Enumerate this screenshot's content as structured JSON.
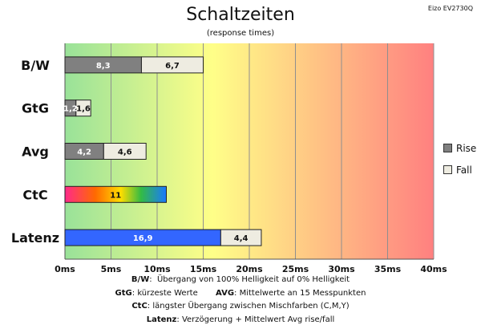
{
  "header": {
    "title": "Schaltzeiten",
    "subtitle": "(response times)",
    "model": "Eizo EV2730Q"
  },
  "colors": {
    "rise": "#808080",
    "fall": "#eeece1",
    "latency": "#3366ff",
    "bg_gradient": [
      "#99e299",
      "#ffff88",
      "#ff8080"
    ]
  },
  "chart_data": {
    "type": "bar",
    "orientation": "horizontal",
    "stacked": true,
    "categories": [
      "B/W",
      "GtG",
      "Avg",
      "CtC",
      "Latenz"
    ],
    "series": [
      {
        "name": "Rise",
        "values": [
          8.3,
          1.2,
          4.2,
          null,
          16.9
        ]
      },
      {
        "name": "Fall",
        "values": [
          6.7,
          1.6,
          4.6,
          null,
          4.4
        ]
      },
      {
        "name": "",
        "values": [
          null,
          null,
          null,
          11,
          null
        ]
      }
    ],
    "value_labels": [
      [
        "8,3",
        "6,7"
      ],
      [
        "1,2",
        "1,6"
      ],
      [
        "4,2",
        "4,6"
      ],
      [
        "11"
      ],
      [
        "16,9",
        "4,4"
      ]
    ],
    "xlim": [
      0,
      40
    ],
    "xticks": [
      0,
      5,
      10,
      15,
      20,
      25,
      30,
      35,
      40
    ],
    "xtick_labels": [
      "0ms",
      "5ms",
      "10ms",
      "15ms",
      "20ms",
      "25ms",
      "30ms",
      "35ms",
      "40ms"
    ],
    "legend": [
      {
        "label": "Rise",
        "color": "#808080"
      },
      {
        "label": "Fall",
        "color": "#eeece1"
      }
    ],
    "legend_position": "right",
    "grid": true
  },
  "notes": [
    {
      "key": "B/W",
      "text": "Übergang von 100% Helligkeit auf 0% Helligkeit"
    },
    {
      "key": "GtG",
      "text": "kürzeste Werte"
    },
    {
      "key": "AVG",
      "text": "Mittelwerte an 15 Messpunkten"
    },
    {
      "key": "CtC",
      "text": "längster Übergang zwischen Mischfarben (C,M,Y)"
    },
    {
      "key": "Latenz",
      "text": "Verzögerung + Mittelwert Avg rise/fall"
    }
  ]
}
